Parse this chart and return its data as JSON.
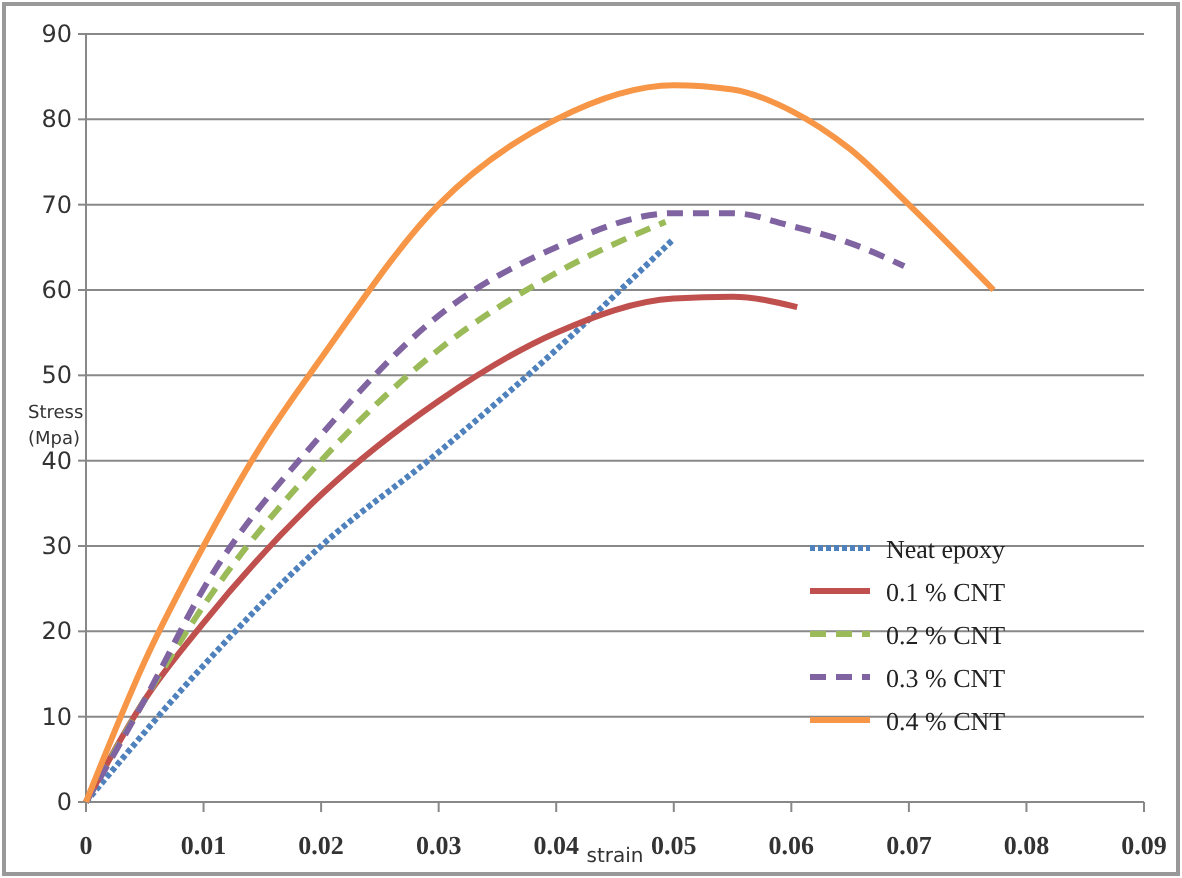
{
  "chart_data": {
    "type": "line",
    "xlabel": "strain",
    "ylabel": "Stress (Mpa)",
    "xlim": [
      0,
      0.09
    ],
    "xticks": [
      0,
      0.01,
      0.02,
      0.03,
      0.04,
      0.05,
      0.06,
      0.07,
      0.08,
      0.09
    ],
    "ylim": [
      0,
      90
    ],
    "yticks": [
      0,
      10,
      20,
      30,
      40,
      50,
      60,
      70,
      80,
      90
    ],
    "grid": "y",
    "legend": "bottom right",
    "series": [
      {
        "name": "Neat epoxy",
        "color": "#4f81bd",
        "line_style": "dotted",
        "x": [
          0,
          0.01,
          0.02,
          0.03,
          0.04,
          0.05
        ],
        "values": [
          0,
          16,
          30,
          41,
          53,
          66
        ]
      },
      {
        "name": "0.1 % CNT",
        "color": "#c0504d",
        "line_style": "solid",
        "x": [
          0,
          0.005,
          0.01,
          0.02,
          0.03,
          0.04,
          0.05,
          0.055,
          0.0605
        ],
        "values": [
          0,
          12,
          21,
          36,
          47,
          55,
          59,
          59.2,
          58
        ]
      },
      {
        "name": "0.2 % CNT",
        "color": "#9bbb59",
        "line_style": "dashed",
        "x": [
          0,
          0.005,
          0.01,
          0.02,
          0.03,
          0.04,
          0.0493
        ],
        "values": [
          0,
          12,
          23,
          40,
          53,
          62,
          68
        ]
      },
      {
        "name": "0.3 % CNT",
        "color": "#8064a2",
        "line_style": "dashed",
        "x": [
          0,
          0.005,
          0.01,
          0.02,
          0.03,
          0.04,
          0.05,
          0.055,
          0.06,
          0.065,
          0.0696
        ],
        "values": [
          0,
          12,
          25,
          43,
          57,
          65,
          69,
          69,
          67.5,
          65.5,
          62.8
        ]
      },
      {
        "name": "0.4  % CNT",
        "color": "#f79646",
        "line_style": "solid",
        "x": [
          0,
          0.005,
          0.01,
          0.015,
          0.02,
          0.03,
          0.04,
          0.05,
          0.055,
          0.06,
          0.065,
          0.07,
          0.0772
        ],
        "values": [
          0,
          16.5,
          30,
          42,
          52,
          70,
          80,
          84,
          83.5,
          81,
          76.5,
          70,
          60
        ]
      }
    ]
  }
}
